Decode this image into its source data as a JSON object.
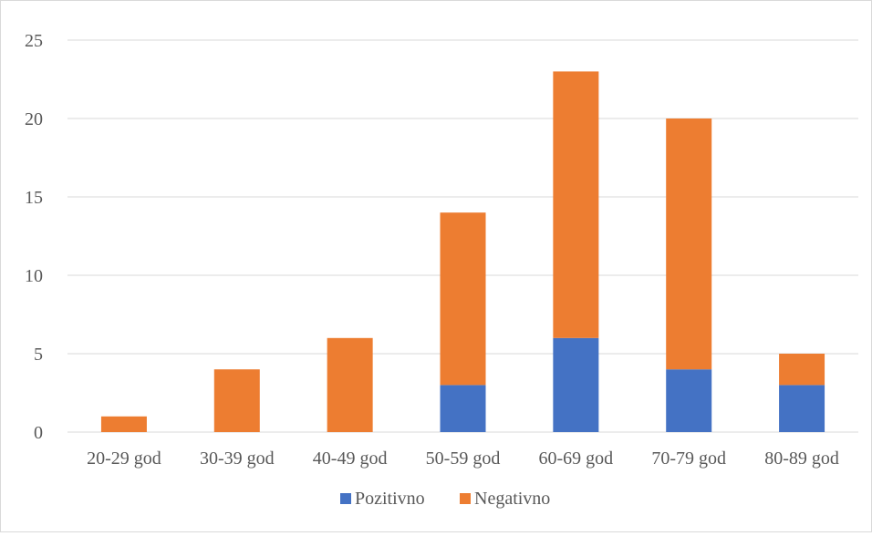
{
  "chart_data": {
    "type": "bar",
    "stacked": true,
    "categories": [
      "20-29 god",
      "30-39 god",
      "40-49 god",
      "50-59 god",
      "60-69 god",
      "70-79 god",
      "80-89 god"
    ],
    "series": [
      {
        "name": "Pozitivno",
        "color": "#4472c4",
        "values": [
          0,
          0,
          0,
          3,
          6,
          4,
          3
        ]
      },
      {
        "name": "Negativno",
        "color": "#ed7d31",
        "values": [
          1,
          4,
          6,
          11,
          17,
          16,
          2
        ]
      }
    ],
    "yticks": [
      "0",
      "5",
      "10",
      "15",
      "20",
      "25"
    ],
    "ylim": [
      0,
      25
    ],
    "grid": true,
    "legend_position": "bottom"
  }
}
